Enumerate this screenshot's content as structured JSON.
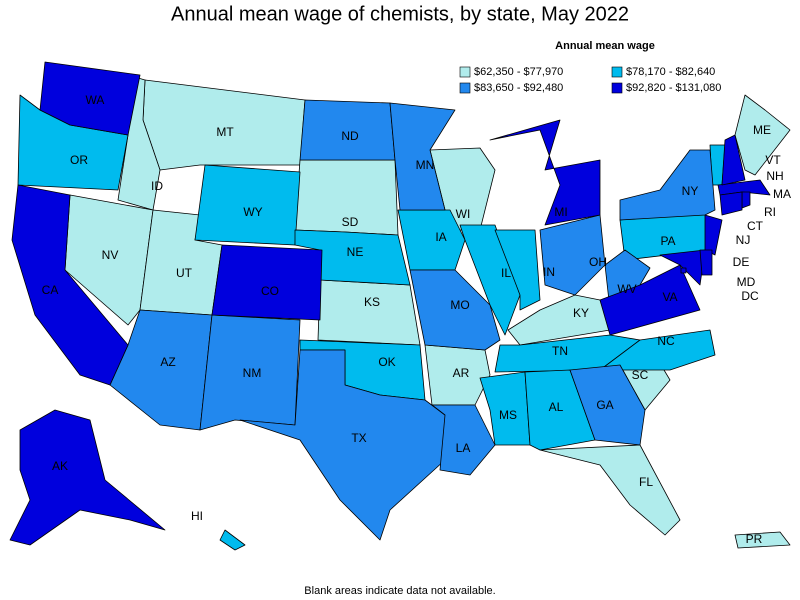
{
  "title": "Annual mean wage of chemists, by state, May 2022",
  "legend": {
    "title": "Annual mean wage",
    "bins": [
      {
        "label": "$62,350 - $77,970",
        "color": "#b0ecec",
        "states": [
          "MT",
          "ID",
          "NV",
          "UT",
          "SD",
          "KS",
          "WI",
          "AR",
          "KY",
          "SC",
          "FL",
          "ME",
          "PR"
        ]
      },
      {
        "label": "$78,170 - $82,640",
        "color": "#00bbee",
        "states": [
          "OR",
          "WY",
          "NE",
          "IA",
          "IL",
          "IN",
          "OK",
          "TN",
          "MS",
          "AL",
          "NC",
          "PA",
          "VT",
          "HI"
        ]
      },
      {
        "label": "$83,650 - $92,480",
        "color": "#2288ee",
        "states": [
          "ND",
          "MN",
          "NY",
          "OH",
          "WV",
          "MO",
          "AZ",
          "NM",
          "TX",
          "LA",
          "GA"
        ]
      },
      {
        "label": "$92,820 - $131,080",
        "color": "#0000dd",
        "states": [
          "WA",
          "CA",
          "CO",
          "MI",
          "AK",
          "MA",
          "NJ",
          "MD",
          "DE",
          "VA",
          "DC",
          "RI",
          "NH",
          "CT"
        ]
      }
    ]
  },
  "footnote": "Blank areas indicate data not available."
}
